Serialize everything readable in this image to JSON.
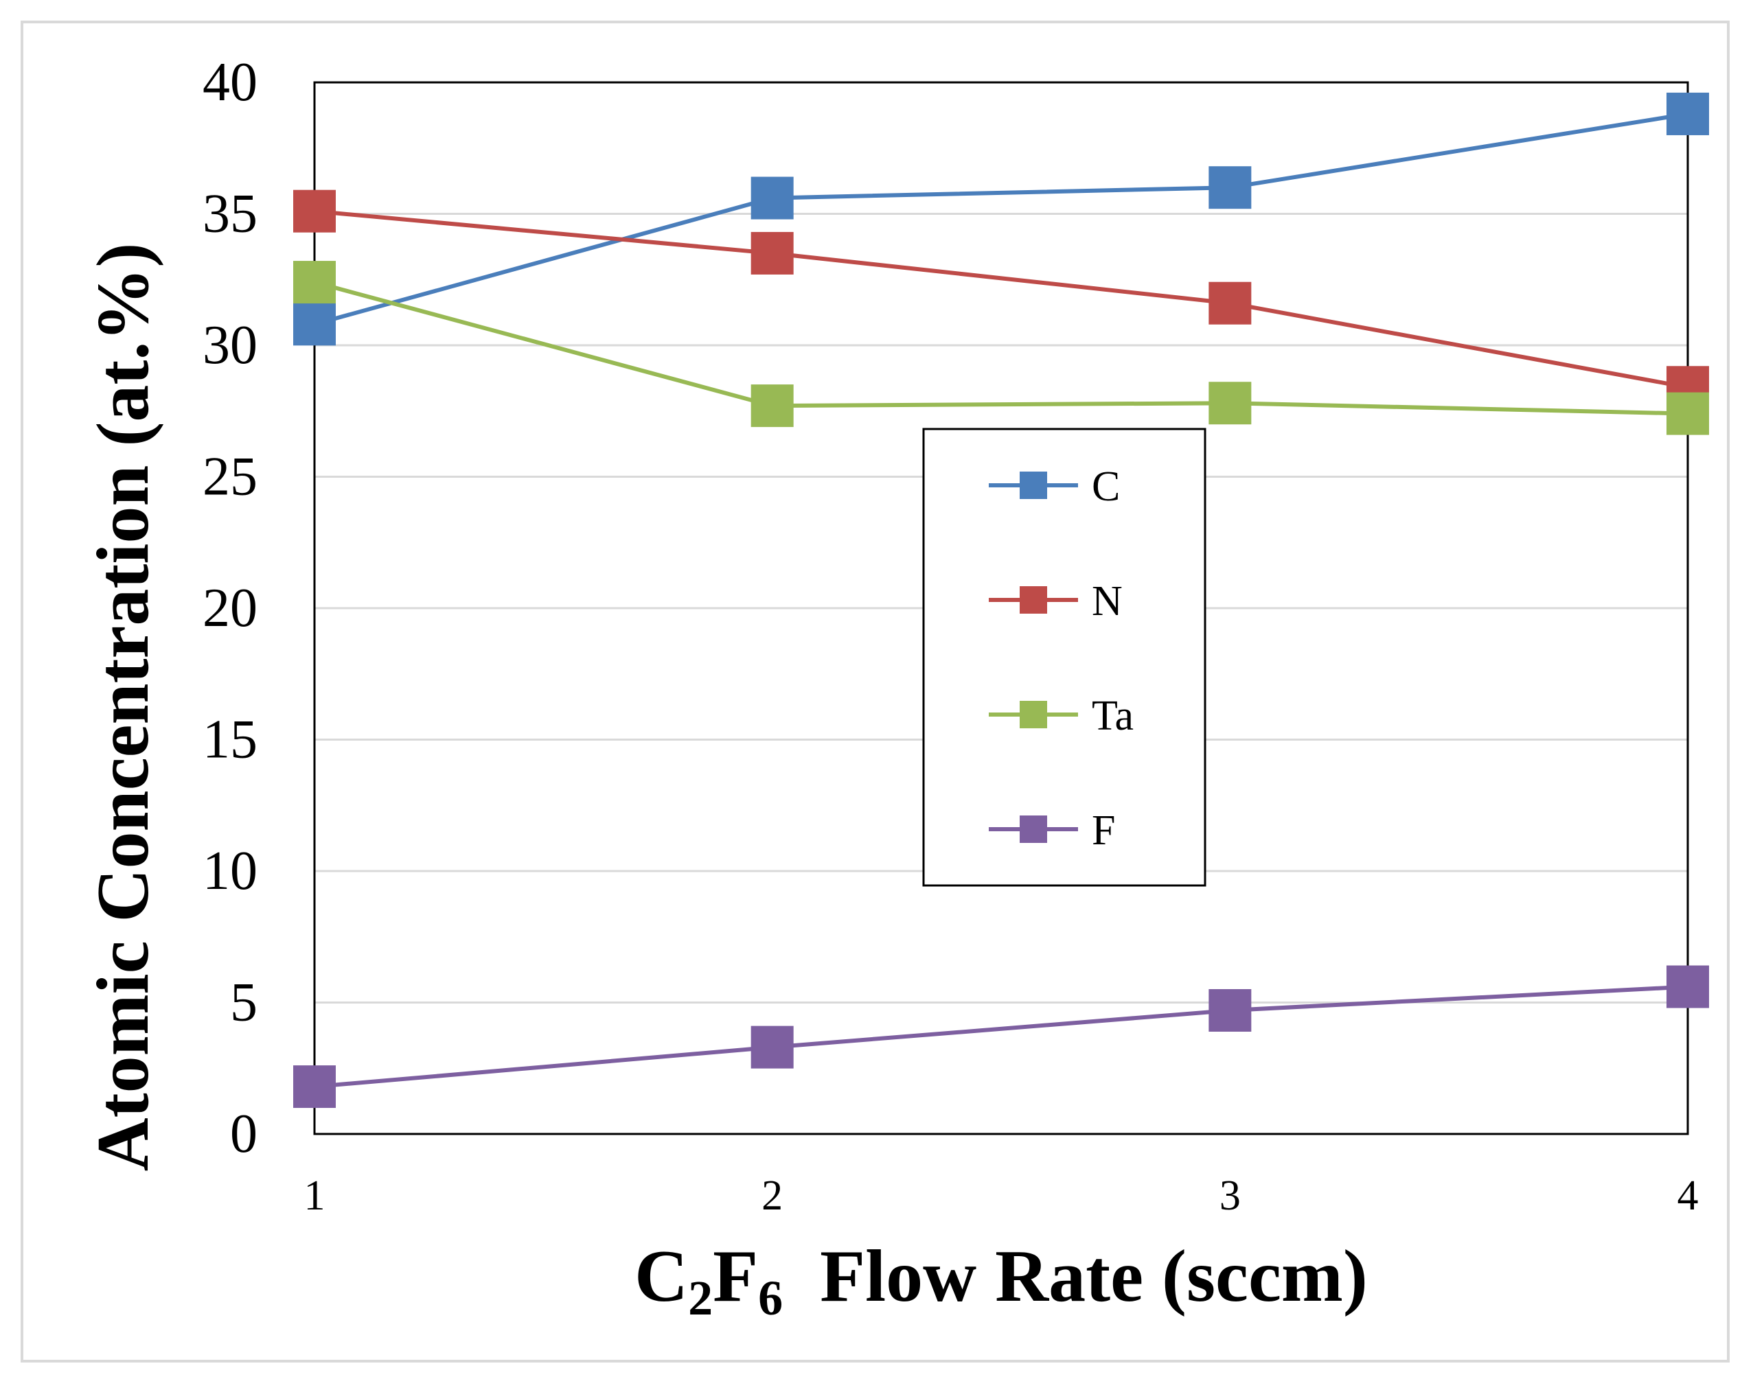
{
  "chart_data": {
    "type": "line",
    "title": "",
    "xlabel_parts": [
      "C",
      "2",
      "F",
      "6",
      "  Flow Rate (sccm)"
    ],
    "ylabel": "Atomic Concentration (at.%)",
    "x": [
      1,
      2,
      3,
      4
    ],
    "x_tick_labels": [
      "1",
      "2",
      "3",
      "4"
    ],
    "y_tick_labels": [
      "0",
      "5",
      "10",
      "15",
      "20",
      "25",
      "30",
      "35",
      "40"
    ],
    "ylim": [
      0,
      40
    ],
    "xlim": [
      1,
      4
    ],
    "grid": true,
    "legend_position": "center",
    "series": [
      {
        "name": "C",
        "color": "#4a7ebb",
        "values": [
          30.8,
          35.6,
          36.0,
          38.8
        ]
      },
      {
        "name": "N",
        "color": "#be4b48",
        "values": [
          35.1,
          33.5,
          31.6,
          28.4
        ]
      },
      {
        "name": "Ta",
        "color": "#98b954",
        "values": [
          32.4,
          27.7,
          27.8,
          27.4
        ]
      },
      {
        "name": "F",
        "color": "#7d5fa0",
        "values": [
          1.8,
          3.3,
          4.7,
          5.6
        ]
      }
    ]
  }
}
